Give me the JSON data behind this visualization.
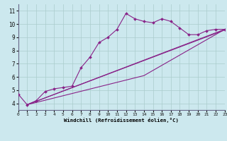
{
  "xlabel": "Windchill (Refroidissement éolien,°C)",
  "background_color": "#cce8ee",
  "grid_color": "#aacccc",
  "line_color": "#882288",
  "xlim": [
    0,
    23
  ],
  "ylim": [
    3.5,
    11.5
  ],
  "xticks": [
    0,
    1,
    2,
    3,
    4,
    5,
    6,
    7,
    8,
    9,
    10,
    11,
    12,
    13,
    14,
    15,
    16,
    17,
    18,
    19,
    20,
    21,
    22,
    23
  ],
  "yticks": [
    4,
    5,
    6,
    7,
    8,
    9,
    10,
    11
  ],
  "series_main": {
    "x": [
      0,
      1,
      2,
      3,
      4,
      5,
      6,
      7,
      8,
      9,
      10,
      11,
      12,
      13,
      14,
      15,
      16,
      17,
      18,
      19,
      20,
      21,
      22,
      23
    ],
    "y": [
      4.7,
      3.9,
      4.2,
      4.9,
      5.1,
      5.2,
      5.3,
      6.7,
      7.5,
      8.6,
      9.0,
      9.6,
      10.8,
      10.4,
      10.2,
      10.1,
      10.4,
      10.2,
      9.7,
      9.2,
      9.2,
      9.5,
      9.6,
      9.6
    ]
  },
  "series_smooth": [
    {
      "x": [
        1,
        23
      ],
      "y": [
        3.9,
        9.55
      ]
    },
    {
      "x": [
        1,
        23
      ],
      "y": [
        3.9,
        9.6
      ]
    },
    {
      "x": [
        1,
        14,
        23
      ],
      "y": [
        3.9,
        6.1,
        9.6
      ]
    }
  ]
}
